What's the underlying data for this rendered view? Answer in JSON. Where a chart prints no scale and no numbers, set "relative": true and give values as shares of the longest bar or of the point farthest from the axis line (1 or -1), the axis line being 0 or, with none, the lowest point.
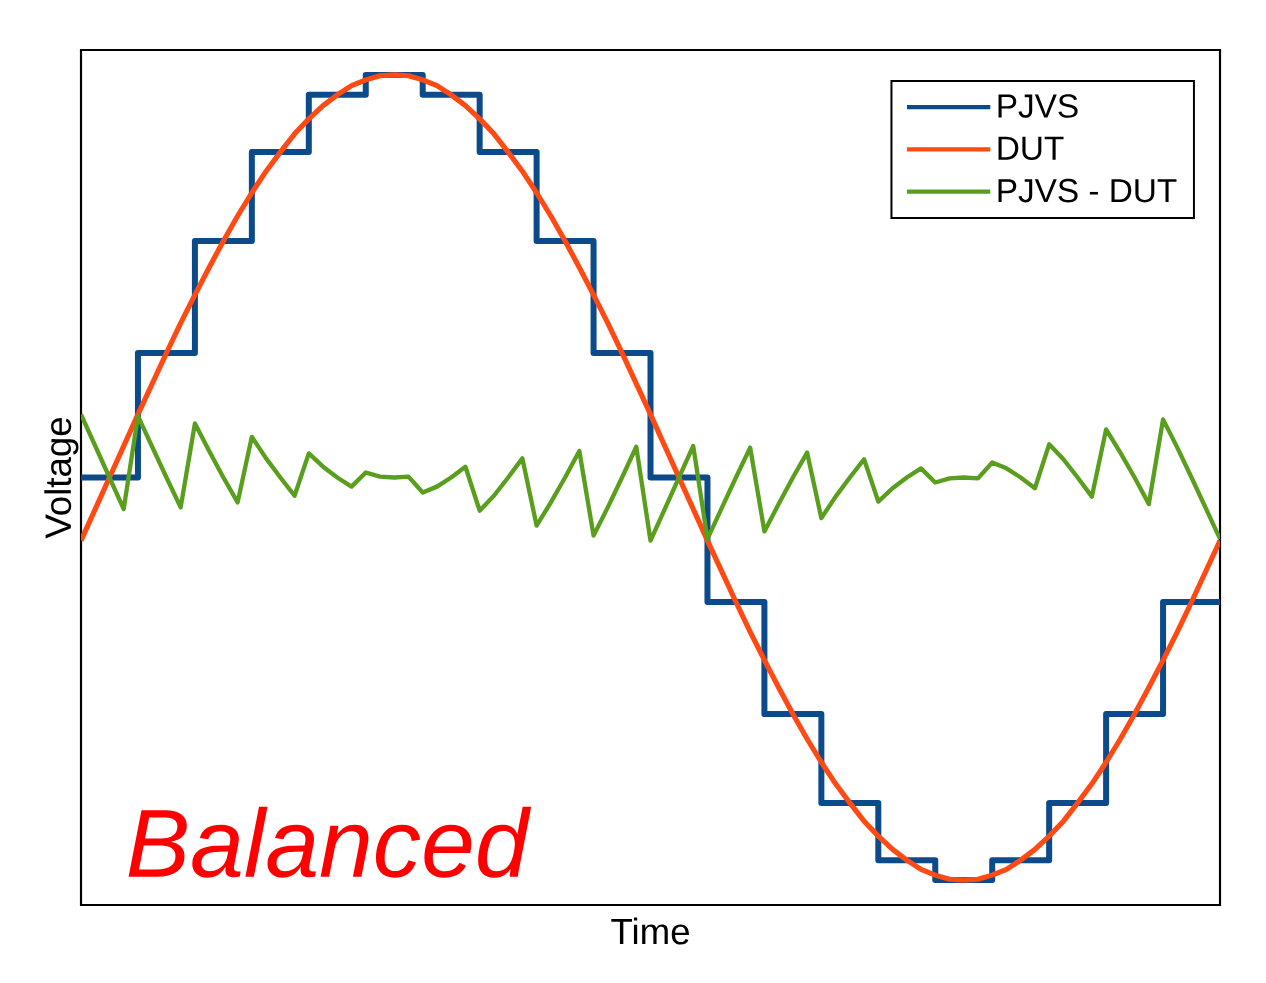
{
  "chart_data": {
    "type": "line",
    "relative": true,
    "xlabel": "Time",
    "ylabel": "Voltage",
    "legend": "top right",
    "annotations": [
      "Balanced"
    ],
    "categories": [
      null,
      null,
      null,
      null,
      null,
      null,
      null,
      null,
      null,
      null,
      null,
      null,
      null,
      null,
      null,
      null,
      null,
      null,
      null,
      null,
      null,
      null,
      null,
      null,
      null,
      null,
      null,
      null,
      null,
      null,
      null,
      null,
      null,
      null,
      null,
      null,
      null,
      null,
      null,
      null,
      null,
      null,
      null,
      null,
      null,
      null,
      null,
      null,
      null,
      null,
      null,
      null,
      null,
      null,
      null,
      null,
      null,
      null,
      null,
      null,
      null,
      null,
      null,
      null,
      null,
      null,
      null,
      null,
      null,
      null,
      null,
      null,
      null,
      null,
      null,
      null,
      null,
      null,
      null,
      null,
      null
    ],
    "series": [
      {
        "name": "PJVS",
        "type": "step",
        "color": "#0b4a8b",
        "values": [
          0.515,
          0.515,
          0.515,
          0.515,
          0.665,
          0.665,
          0.665,
          0.665,
          0.8,
          0.8,
          0.8,
          0.8,
          0.907,
          0.907,
          0.907,
          0.907,
          0.976,
          0.976,
          0.976,
          0.976,
          1.0,
          1.0,
          1.0,
          1.0,
          0.976,
          0.976,
          0.976,
          0.976,
          0.907,
          0.907,
          0.907,
          0.907,
          0.8,
          0.8,
          0.8,
          0.8,
          0.665,
          0.665,
          0.665,
          0.665,
          0.515,
          0.515,
          0.515,
          0.515,
          0.365,
          0.365,
          0.365,
          0.365,
          0.23,
          0.23,
          0.23,
          0.23,
          0.123,
          0.123,
          0.123,
          0.123,
          0.054,
          0.054,
          0.054,
          0.054,
          0.03,
          0.03,
          0.03,
          0.03,
          0.054,
          0.054,
          0.054,
          0.054,
          0.123,
          0.123,
          0.123,
          0.123,
          0.23,
          0.23,
          0.23,
          0.23,
          0.365,
          0.365,
          0.365,
          0.365,
          0.365
        ]
      },
      {
        "name": "DUT",
        "type": "line",
        "color": "#ff4a14",
        "values": [
          0.439,
          0.477,
          0.515,
          0.553,
          0.591,
          0.628,
          0.665,
          0.701,
          0.735,
          0.768,
          0.8,
          0.83,
          0.858,
          0.884,
          0.907,
          0.929,
          0.947,
          0.963,
          0.976,
          0.987,
          0.994,
          0.999,
          1.0,
          0.999,
          0.994,
          0.987,
          0.976,
          0.963,
          0.947,
          0.929,
          0.907,
          0.884,
          0.858,
          0.83,
          0.8,
          0.768,
          0.735,
          0.701,
          0.665,
          0.628,
          0.591,
          0.553,
          0.515,
          0.477,
          0.439,
          0.402,
          0.365,
          0.329,
          0.295,
          0.262,
          0.23,
          0.2,
          0.172,
          0.146,
          0.123,
          0.101,
          0.083,
          0.067,
          0.054,
          0.043,
          0.036,
          0.031,
          0.03,
          0.031,
          0.036,
          0.043,
          0.054,
          0.067,
          0.083,
          0.101,
          0.123,
          0.146,
          0.172,
          0.2,
          0.23,
          0.262,
          0.295,
          0.329,
          0.365,
          0.402,
          0.439
        ]
      },
      {
        "name": "PJVS - DUT",
        "type": "line",
        "color": "#5a9e1e",
        "values": [
          0.591,
          0.553,
          0.515,
          0.477,
          0.589,
          0.552,
          0.515,
          0.479,
          0.58,
          0.547,
          0.515,
          0.485,
          0.564,
          0.538,
          0.515,
          0.493,
          0.544,
          0.528,
          0.515,
          0.504,
          0.521,
          0.516,
          0.515,
          0.516,
          0.497,
          0.504,
          0.515,
          0.528,
          0.475,
          0.493,
          0.515,
          0.538,
          0.457,
          0.485,
          0.515,
          0.547,
          0.445,
          0.479,
          0.515,
          0.552,
          0.439,
          0.477,
          0.515,
          0.553,
          0.441,
          0.478,
          0.515,
          0.551,
          0.45,
          0.483,
          0.515,
          0.545,
          0.466,
          0.492,
          0.515,
          0.537,
          0.486,
          0.502,
          0.515,
          0.526,
          0.509,
          0.514,
          0.515,
          0.514,
          0.533,
          0.526,
          0.515,
          0.502,
          0.555,
          0.537,
          0.515,
          0.492,
          0.573,
          0.545,
          0.515,
          0.483,
          0.585,
          0.551,
          0.515,
          0.478,
          0.441
        ]
      }
    ]
  }
}
